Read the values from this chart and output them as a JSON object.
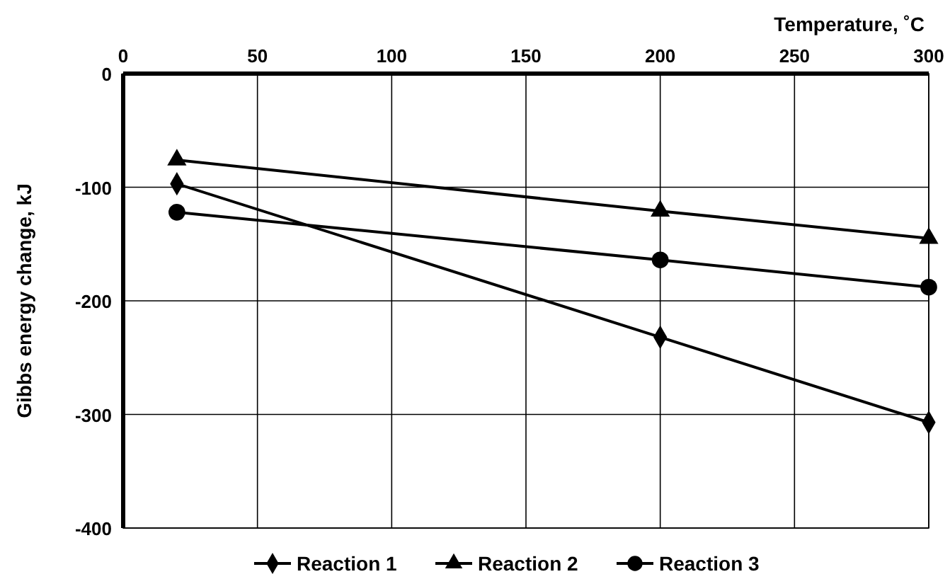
{
  "chart_data": {
    "type": "line",
    "xlabel": "Temperature, ˚C",
    "ylabel": "Gibbs energy change, kJ",
    "xlim": [
      0,
      300
    ],
    "xticks": [
      0,
      50,
      100,
      150,
      200,
      250,
      300
    ],
    "ylim": [
      -400,
      0
    ],
    "yticks": [
      -400,
      -300,
      -200,
      -100,
      0
    ],
    "grid": true,
    "legend": "bottom",
    "line_style": "solid",
    "series": [
      {
        "name": "Reaction 1",
        "color": "#000000",
        "marker": "diamond",
        "x": [
          20,
          200,
          300
        ],
        "values": [
          -97,
          -232,
          -307
        ]
      },
      {
        "name": "Reaction 2",
        "color": "#000000",
        "marker": "triangle",
        "x": [
          20,
          200,
          300
        ],
        "values": [
          -76,
          -121,
          -145
        ]
      },
      {
        "name": "Reaction 3",
        "color": "#000000",
        "marker": "circle",
        "x": [
          20,
          200,
          300
        ],
        "values": [
          -122,
          -164,
          -188
        ]
      }
    ]
  }
}
